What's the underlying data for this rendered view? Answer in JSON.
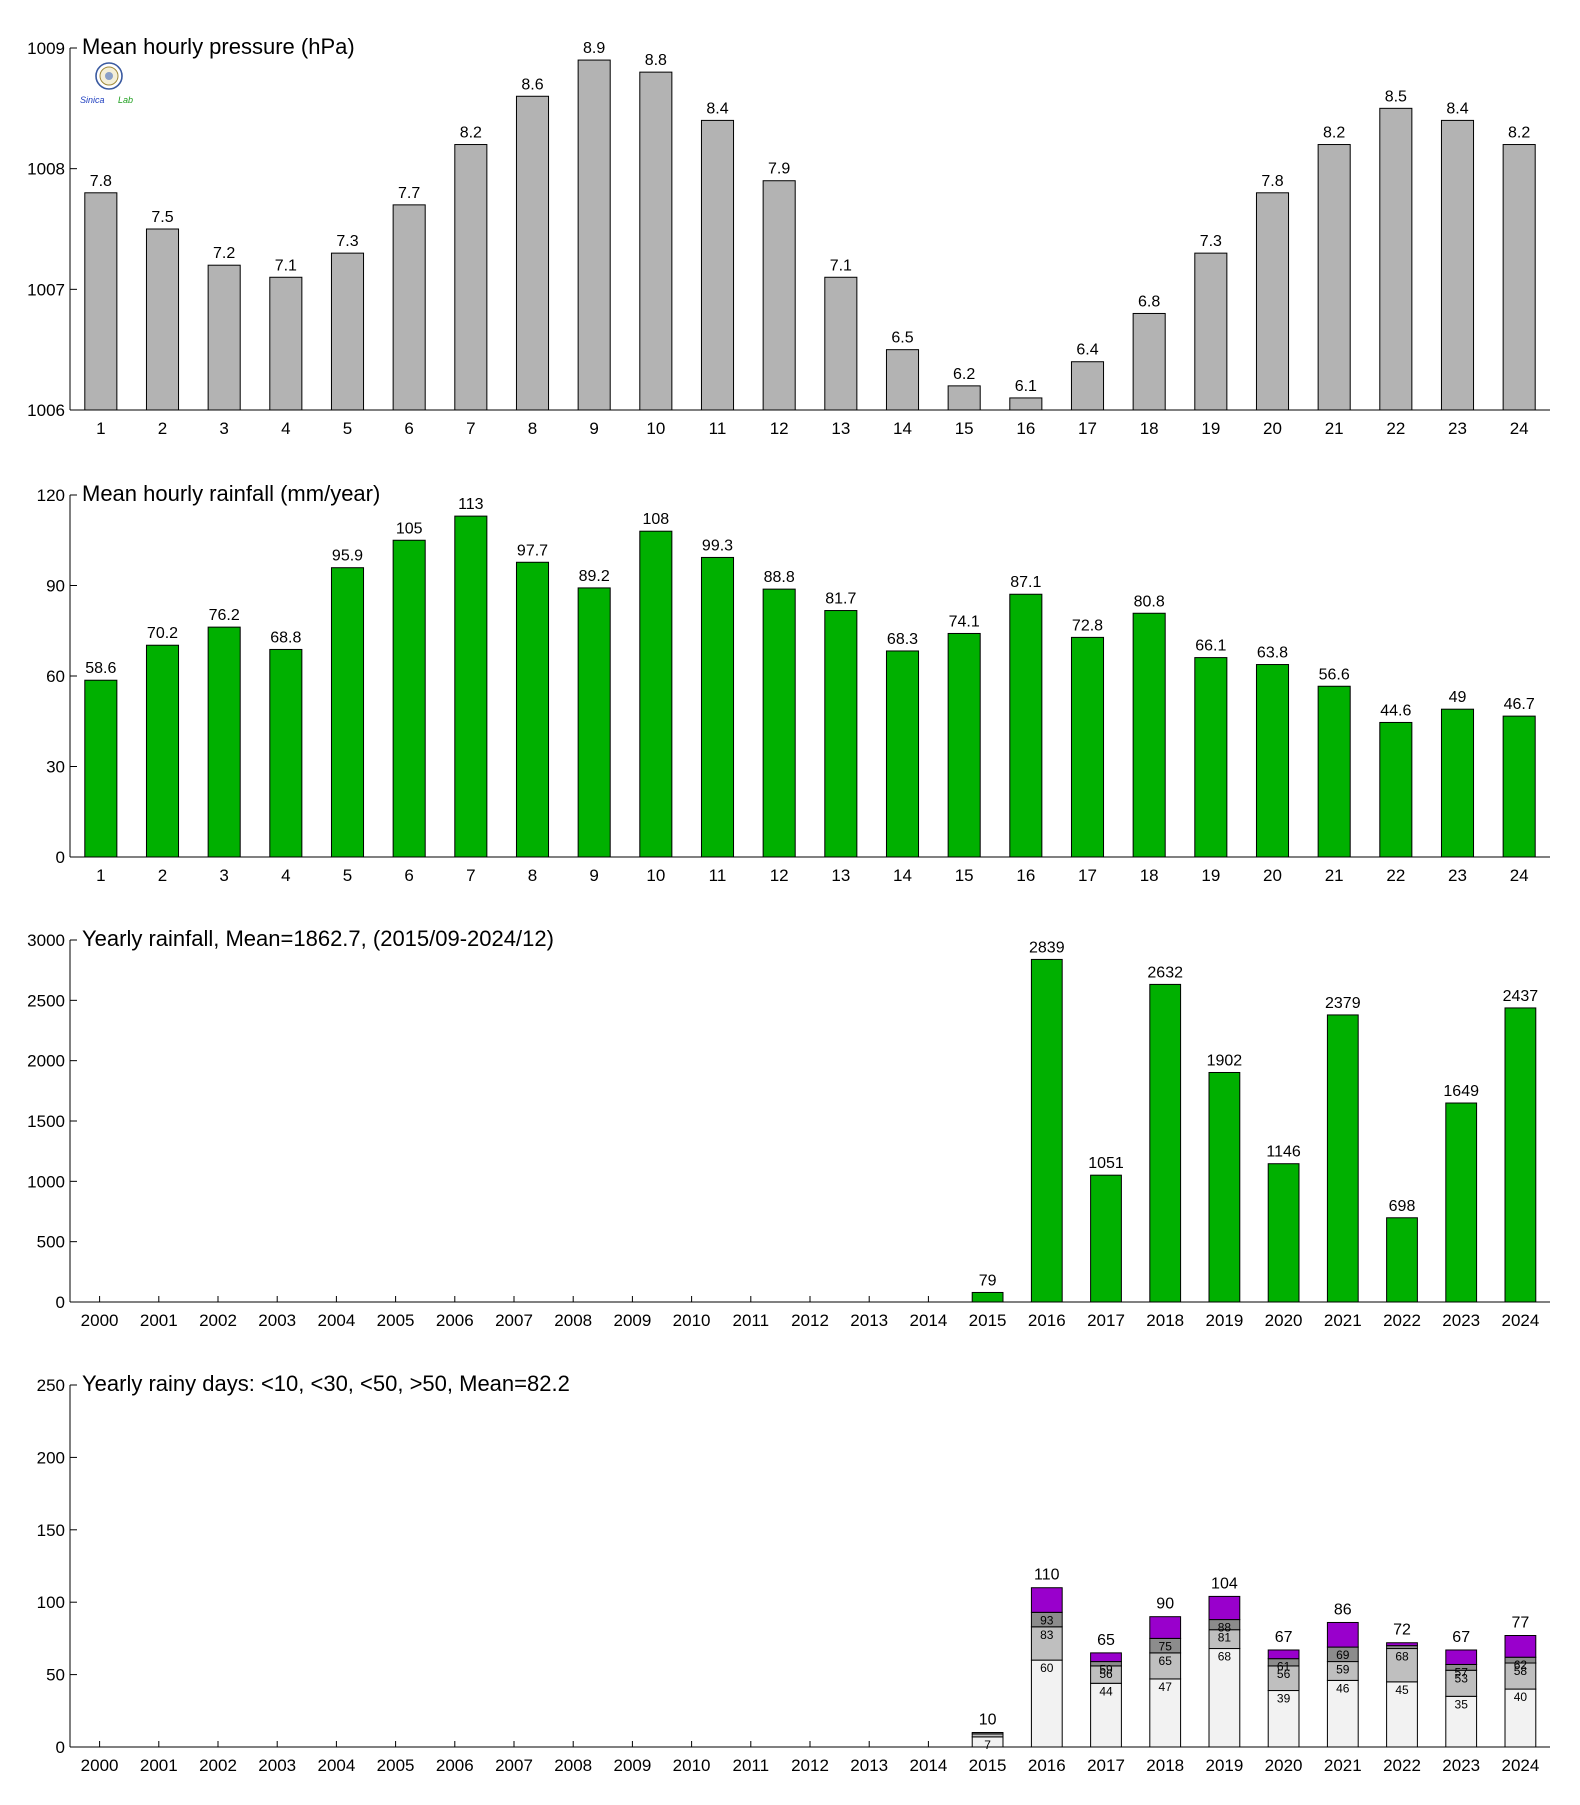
{
  "logo": {
    "word1": "Sinica",
    "word2": "Lab"
  },
  "colors": {
    "pressure": "#b3b3b3",
    "rain": "#00b000",
    "days_lt10": "#f2f2f2",
    "days_lt30": "#bfbfbf",
    "days_lt50": "#8c8c8c",
    "days_gt50": "#9900cc"
  },
  "chart_data": [
    {
      "type": "bar",
      "title": "Mean hourly pressure (hPa)",
      "categories": [
        "1",
        "2",
        "3",
        "4",
        "5",
        "6",
        "7",
        "8",
        "9",
        "10",
        "11",
        "12",
        "13",
        "14",
        "15",
        "16",
        "17",
        "18",
        "19",
        "20",
        "21",
        "22",
        "23",
        "24"
      ],
      "values": [
        1007.8,
        1007.5,
        1007.2,
        1007.1,
        1007.3,
        1007.7,
        1008.2,
        1008.6,
        1008.9,
        1008.8,
        1008.4,
        1007.9,
        1007.1,
        1006.5,
        1006.2,
        1006.1,
        1006.4,
        1006.8,
        1007.3,
        1007.8,
        1008.2,
        1008.5,
        1008.4,
        1008.2
      ],
      "labels": [
        "7.8",
        "7.5",
        "7.2",
        "7.1",
        "7.3",
        "7.7",
        "8.2",
        "8.6",
        "8.9",
        "8.8",
        "8.4",
        "7.9",
        "7.1",
        "6.5",
        "6.2",
        "6.1",
        "6.4",
        "6.8",
        "7.3",
        "7.8",
        "8.2",
        "8.5",
        "8.4",
        "8.2"
      ],
      "ylim": [
        1006,
        1009
      ],
      "yticks": [
        "1006",
        "1007",
        "1008",
        "1009"
      ]
    },
    {
      "type": "bar",
      "title": "Mean hourly rainfall (mm/year)",
      "categories": [
        "1",
        "2",
        "3",
        "4",
        "5",
        "6",
        "7",
        "8",
        "9",
        "10",
        "11",
        "12",
        "13",
        "14",
        "15",
        "16",
        "17",
        "18",
        "19",
        "20",
        "21",
        "22",
        "23",
        "24"
      ],
      "values": [
        58.6,
        70.2,
        76.2,
        68.8,
        95.9,
        105,
        113,
        97.7,
        89.2,
        108,
        99.3,
        88.8,
        81.7,
        68.3,
        74.1,
        87.1,
        72.8,
        80.8,
        66.1,
        63.8,
        56.6,
        44.6,
        49,
        46.7
      ],
      "labels": [
        "58.6",
        "70.2",
        "76.2",
        "68.8",
        "95.9",
        "105",
        "113",
        "97.7",
        "89.2",
        "108",
        "99.3",
        "88.8",
        "81.7",
        "68.3",
        "74.1",
        "87.1",
        "72.8",
        "80.8",
        "66.1",
        "63.8",
        "56.6",
        "44.6",
        "49",
        "46.7"
      ],
      "ylim": [
        0,
        120
      ],
      "yticks": [
        "0",
        "30",
        "60",
        "90",
        "120"
      ]
    },
    {
      "type": "bar",
      "title": "Yearly rainfall, Mean=1862.7, (2015/09-2024/12)",
      "categories": [
        "2000",
        "2001",
        "2002",
        "2003",
        "2004",
        "2005",
        "2006",
        "2007",
        "2008",
        "2009",
        "2010",
        "2011",
        "2012",
        "2013",
        "2014",
        "2015",
        "2016",
        "2017",
        "2018",
        "2019",
        "2020",
        "2021",
        "2022",
        "2023",
        "2024"
      ],
      "values": [
        null,
        null,
        null,
        null,
        null,
        null,
        null,
        null,
        null,
        null,
        null,
        null,
        null,
        null,
        null,
        79,
        2839,
        1051,
        2632,
        1902,
        1146,
        2379,
        698,
        1649,
        2437
      ],
      "labels": [
        "",
        "",
        "",
        "",
        "",
        "",
        "",
        "",
        "",
        "",
        "",
        "",
        "",
        "",
        "",
        "79",
        "2839",
        "1051",
        "2632",
        "1902",
        "1146",
        "2379",
        "698",
        "1649",
        "2437"
      ],
      "ylim": [
        0,
        3000
      ],
      "yticks": [
        "0",
        "500",
        "1000",
        "1500",
        "2000",
        "2500",
        "3000"
      ]
    },
    {
      "type": "bar",
      "stacked": true,
      "title": "Yearly rainy days: <10, <30, <50, >50, Mean=82.2",
      "categories": [
        "2000",
        "2001",
        "2002",
        "2003",
        "2004",
        "2005",
        "2006",
        "2007",
        "2008",
        "2009",
        "2010",
        "2011",
        "2012",
        "2013",
        "2014",
        "2015",
        "2016",
        "2017",
        "2018",
        "2019",
        "2020",
        "2021",
        "2022",
        "2023",
        "2024"
      ],
      "cumulative": [
        null,
        null,
        null,
        null,
        null,
        null,
        null,
        null,
        null,
        null,
        null,
        null,
        null,
        null,
        null,
        [
          7,
          9,
          10,
          10
        ],
        [
          60,
          83,
          93,
          110
        ],
        [
          44,
          56,
          59,
          65
        ],
        [
          47,
          65,
          75,
          90
        ],
        [
          68,
          81,
          88,
          104
        ],
        [
          39,
          56,
          61,
          67
        ],
        [
          46,
          59,
          69,
          86
        ],
        [
          45,
          68,
          70,
          72
        ],
        [
          35,
          53,
          57,
          67
        ],
        [
          40,
          58,
          62,
          77
        ]
      ],
      "segment_labels": [
        null,
        null,
        null,
        null,
        null,
        null,
        null,
        null,
        null,
        null,
        null,
        null,
        null,
        null,
        null,
        [
          "7",
          "",
          "",
          ""
        ],
        [
          "60",
          "83",
          "93",
          ""
        ],
        [
          "44",
          "56",
          "59",
          ""
        ],
        [
          "47",
          "65",
          "75",
          ""
        ],
        [
          "68",
          "81",
          "88",
          ""
        ],
        [
          "39",
          "56",
          "61",
          ""
        ],
        [
          "46",
          "59",
          "69",
          ""
        ],
        [
          "45",
          "68",
          "",
          ""
        ],
        [
          "35",
          "53",
          "57",
          ""
        ],
        [
          "40",
          "58",
          "62",
          ""
        ]
      ],
      "totals": [
        "",
        "",
        "",
        "",
        "",
        "",
        "",
        "",
        "",
        "",
        "",
        "",
        "",
        "",
        "",
        "10",
        "110",
        "65",
        "90",
        "104",
        "67",
        "86",
        "72",
        "67",
        "77"
      ],
      "ylim": [
        0,
        250
      ],
      "yticks": [
        "0",
        "50",
        "100",
        "150",
        "200",
        "250"
      ]
    }
  ]
}
